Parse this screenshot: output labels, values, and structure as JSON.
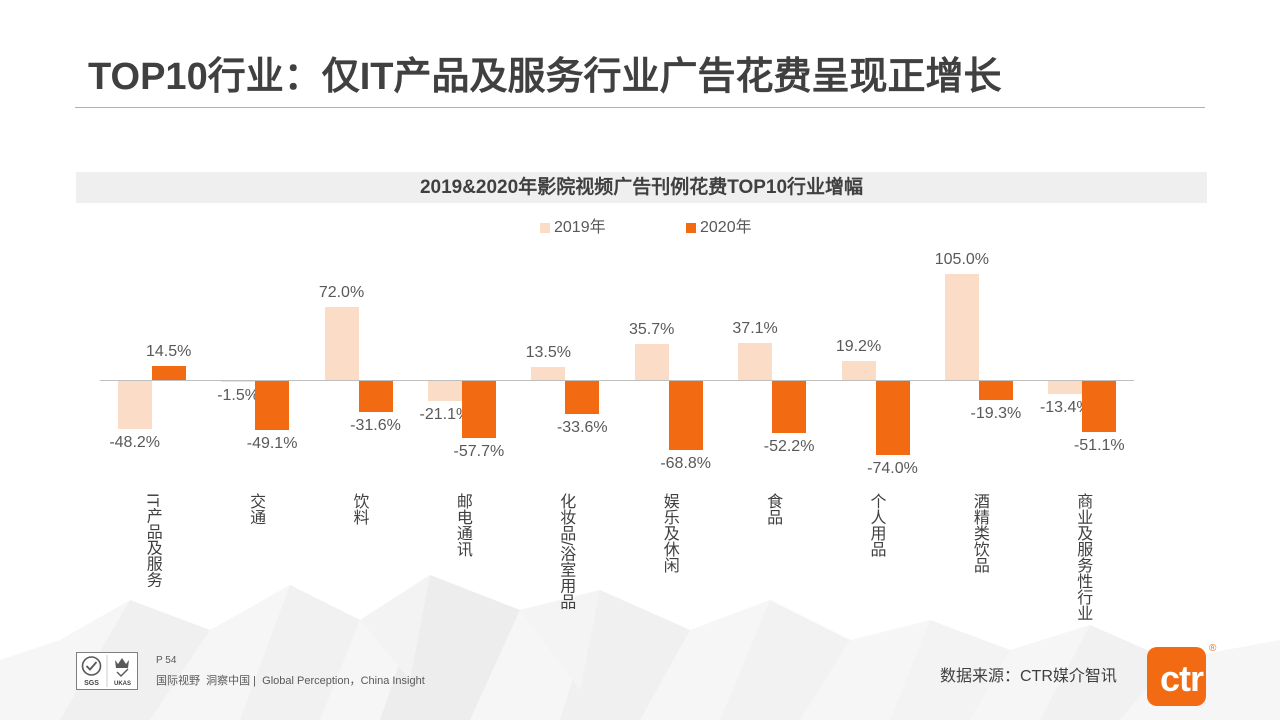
{
  "slide": {
    "title": "TOP10行业：仅IT产品及服务行业广告花费呈现正增长",
    "page_number": "P 54",
    "slogan": "国际视野  洞察中国 |  Global Perception，China Insight",
    "source": "数据来源：CTR媒介智讯"
  },
  "badges": {
    "left": "SGS",
    "right": "UKAS"
  },
  "logo": {
    "text": "ctr",
    "registered": "®",
    "color": "#f26b12"
  },
  "colors": {
    "title_text": "#404040",
    "banner_bg": "#efefef",
    "label_text": "#595959",
    "series_2019": "#fbdcc6",
    "series_2020": "#f26b12"
  },
  "chart_data": {
    "type": "bar",
    "title": "2019&2020年影院视频广告刊例花费TOP10行业增幅",
    "categories": [
      "IT产品及服务",
      "交通",
      "饮料",
      "邮电通讯",
      "化妆品/浴室用品",
      "娱乐及休闲",
      "食品",
      "个人用品",
      "酒精类饮品",
      "商业及服务性行业"
    ],
    "series": [
      {
        "name": "2019年",
        "color": "#fbdcc6",
        "values": [
          -48.2,
          -1.5,
          72.0,
          -21.1,
          13.5,
          35.7,
          37.1,
          19.2,
          105.0,
          -13.4
        ],
        "labels": [
          "-48.2%",
          "-1.5%",
          "72.0%",
          "-21.1%",
          "13.5%",
          "35.7%",
          "37.1%",
          "19.2%",
          "105.0%",
          "-13.4%"
        ]
      },
      {
        "name": "2020年",
        "color": "#f26b12",
        "values": [
          14.5,
          -49.1,
          -31.6,
          -57.7,
          -33.6,
          -68.8,
          -52.2,
          -74.0,
          -19.3,
          -51.1
        ],
        "labels": [
          "14.5%",
          "-49.1%",
          "-31.6%",
          "-57.7%",
          "-33.6%",
          "-68.8%",
          "-52.2%",
          "-74.0%",
          "-19.3%",
          "-51.1%"
        ]
      }
    ],
    "ylim": [
      -80,
      110
    ],
    "grid": false,
    "legend": "top"
  }
}
